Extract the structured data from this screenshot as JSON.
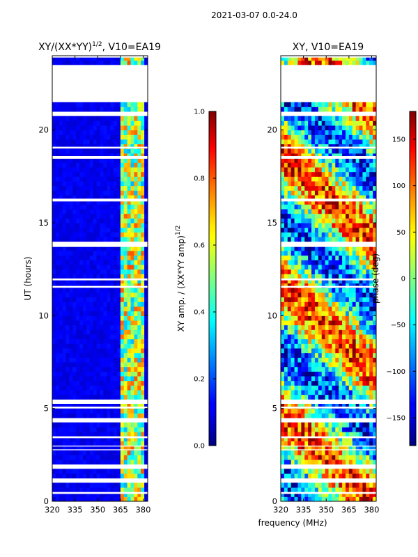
{
  "chart_data": [
    {
      "type": "heatmap",
      "suptitle": "2021-03-07 0.0-24.0",
      "title_main": "XY/(XX*YY)",
      "title_sup": "1/2",
      "title_rest": ", V10=EA19",
      "ylabel": "UT (hours)",
      "xticks": [
        320,
        335,
        350,
        365,
        380
      ],
      "xlim": [
        320,
        383
      ],
      "yticks": [
        0,
        5,
        10,
        15,
        20
      ],
      "ylim": [
        0,
        24
      ],
      "colorbar": {
        "label_main": "XY amp. / (XX*YY amp)",
        "label_sup": "1/2",
        "range": [
          0.0,
          1.0
        ],
        "ticks": [
          "0.0",
          "0.2",
          "0.4",
          "0.6",
          "0.8",
          "1.0"
        ],
        "colormap": "jet"
      },
      "bright_band_mhz": [
        364,
        380
      ],
      "background_value": 0.08,
      "band_value_range": [
        0.3,
        0.8
      ]
    },
    {
      "type": "heatmap",
      "title": "XY, V10=EA19",
      "xlabel": "frequency (MHz)",
      "xticks": [
        320,
        335,
        350,
        365,
        380
      ],
      "xlim": [
        320,
        383
      ],
      "yticks": [
        0,
        5,
        10,
        15,
        20
      ],
      "ylim": [
        0,
        24
      ],
      "colorbar": {
        "label": "phase (deg)",
        "range": [
          -180,
          180
        ],
        "ticks": [
          "150",
          "100",
          "50",
          "0",
          "−50",
          "−100",
          "−150"
        ],
        "tick_values": [
          150,
          100,
          50,
          0,
          -50,
          -100,
          -150
        ],
        "colormap": "jet"
      }
    }
  ],
  "data_gaps_hours": [
    [
      21.5,
      23.5
    ],
    [
      23.9,
      24.0
    ],
    [
      20.8,
      20.9
    ],
    [
      19.0,
      19.1
    ],
    [
      18.45,
      18.6
    ],
    [
      16.15,
      16.3
    ],
    [
      13.7,
      13.9
    ],
    [
      11.9,
      12.0
    ],
    [
      11.5,
      11.6
    ],
    [
      5.3,
      5.4
    ],
    [
      5.0,
      5.1
    ],
    [
      4.3,
      4.4
    ],
    [
      3.4,
      3.5
    ],
    [
      2.95,
      3.0
    ],
    [
      2.75,
      2.8
    ],
    [
      1.8,
      1.9
    ],
    [
      1.1,
      1.2
    ],
    [
      0.4,
      0.5
    ]
  ]
}
